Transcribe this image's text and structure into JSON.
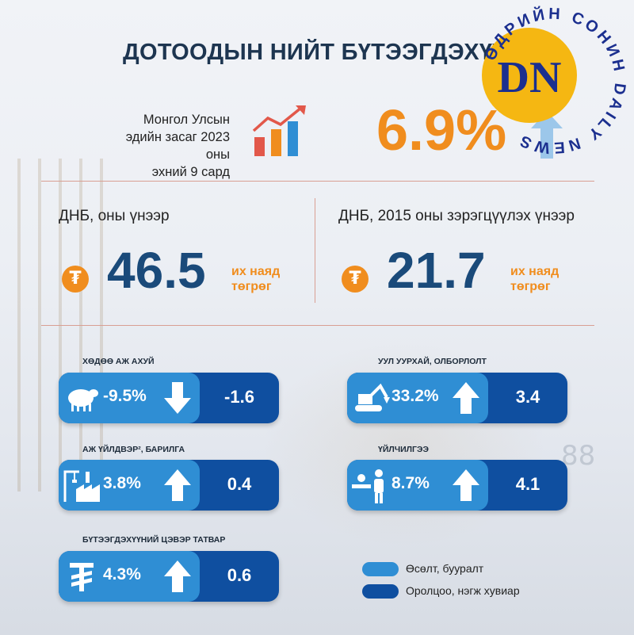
{
  "header": {
    "title": "ДОТООДЫН НИЙТ БҮТЭЭГДЭХҮҮН"
  },
  "intro": {
    "text_line1": "Монгол Улсын",
    "text_line2": "эдийн засаг 2023 оны",
    "text_line3": "эхний 9 сард",
    "growth": "6.9%"
  },
  "gdp_nominal": {
    "label": "ДНБ, оны үнээр",
    "value": "46.5",
    "unit_line1": "их наяд",
    "unit_line2": "төгрөг",
    "currency_symbol": "₮"
  },
  "gdp_real": {
    "label": "ДНБ, 2015 оны зэрэгцүүлэх үнээр",
    "value": "21.7",
    "unit_line1": "их наяд",
    "unit_line2": "төгрөг",
    "currency_symbol": "₮"
  },
  "sectors": [
    {
      "label": "ХӨДӨӨ АЖ АХУЙ",
      "growth": "-9.5%",
      "direction": "down",
      "contribution": "-1.6",
      "icon": "sheep-icon"
    },
    {
      "label": "УУЛ УУРХАЙ, ОЛБОРЛОЛТ",
      "growth": "33.2%",
      "direction": "up",
      "contribution": "3.4",
      "icon": "excavator-icon"
    },
    {
      "label": "АЖ ҮЙЛДВЭР², БАРИЛГА",
      "growth": "3.8%",
      "direction": "up",
      "contribution": "0.4",
      "icon": "factory-crane-icon"
    },
    {
      "label": "ҮЙЛЧИЛГЭЭ",
      "growth": "8.7%",
      "direction": "up",
      "contribution": "4.1",
      "icon": "service-person-icon"
    },
    {
      "label": "БҮТЭЭГДЭХҮҮНИЙ ЦЭВЭР ТАТВАР",
      "growth": "4.3%",
      "direction": "up",
      "contribution": "0.6",
      "icon": "tugrik-icon"
    }
  ],
  "legend": {
    "growth_label": "Өсөлт, бууралт",
    "contribution_label": "Оролцоо, нэгж хувиар",
    "growth_color": "#2f8ed4",
    "contribution_color": "#0f4fa0"
  },
  "logo": {
    "initials": "DN",
    "ring_text": "ӨДРИЙН СОНИН DAILY NEWS"
  },
  "background": {
    "digits": "88"
  },
  "colors": {
    "accent_orange": "#f08d1e",
    "dark_blue": "#1a4a7a",
    "pill_dark": "#0f4fa0",
    "pill_light": "#2f8ed4"
  }
}
